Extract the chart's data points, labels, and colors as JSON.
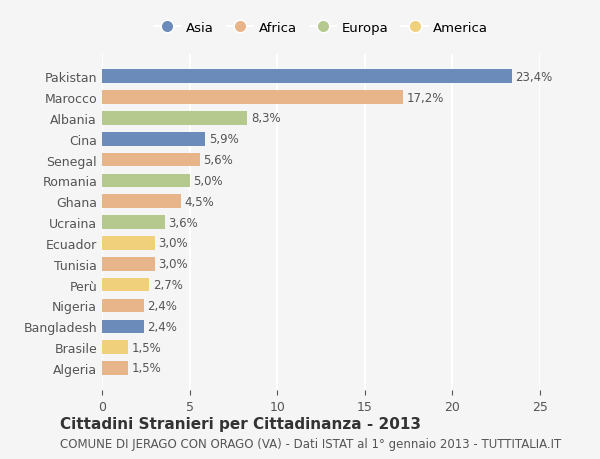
{
  "countries": [
    "Pakistan",
    "Marocco",
    "Albania",
    "Cina",
    "Senegal",
    "Romania",
    "Ghana",
    "Ucraina",
    "Ecuador",
    "Tunisia",
    "Perù",
    "Nigeria",
    "Bangladesh",
    "Brasile",
    "Algeria"
  ],
  "values": [
    23.4,
    17.2,
    8.3,
    5.9,
    5.6,
    5.0,
    4.5,
    3.6,
    3.0,
    3.0,
    2.7,
    2.4,
    2.4,
    1.5,
    1.5
  ],
  "labels": [
    "23,4%",
    "17,2%",
    "8,3%",
    "5,9%",
    "5,6%",
    "5,0%",
    "4,5%",
    "3,6%",
    "3,0%",
    "3,0%",
    "2,7%",
    "2,4%",
    "2,4%",
    "1,5%",
    "1,5%"
  ],
  "continents": [
    "Asia",
    "Africa",
    "Europa",
    "Asia",
    "Africa",
    "Europa",
    "Africa",
    "Europa",
    "America",
    "Africa",
    "America",
    "Africa",
    "Asia",
    "America",
    "Africa"
  ],
  "colors": {
    "Asia": "#6b8cba",
    "Africa": "#e8b48a",
    "Europa": "#b5c98e",
    "America": "#f0d07a"
  },
  "legend_order": [
    "Asia",
    "Africa",
    "Europa",
    "America"
  ],
  "xlim": [
    0,
    25
  ],
  "xticks": [
    0,
    5,
    10,
    15,
    20,
    25
  ],
  "title": "Cittadini Stranieri per Cittadinanza - 2013",
  "subtitle": "COMUNE DI JERAGO CON ORAGO (VA) - Dati ISTAT al 1° gennaio 2013 - TUTTITALIA.IT",
  "background_color": "#f5f5f5",
  "grid_color": "#ffffff",
  "bar_height": 0.65,
  "title_fontsize": 11,
  "subtitle_fontsize": 8.5,
  "tick_fontsize": 9,
  "label_fontsize": 8.5
}
